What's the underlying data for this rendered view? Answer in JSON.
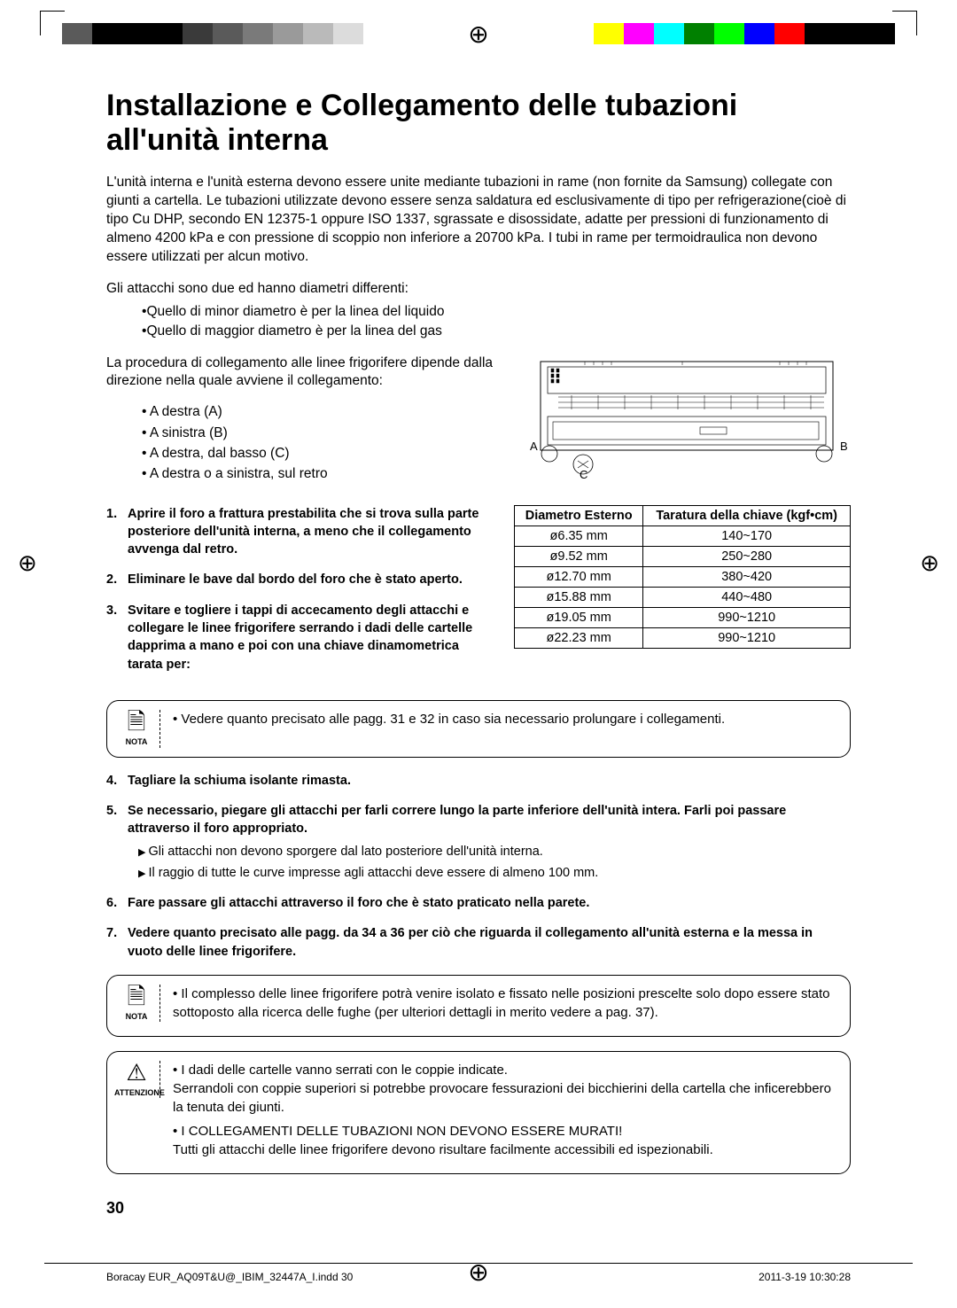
{
  "print": {
    "left_colors": [
      "#5a5a5a",
      "#000000",
      "#000000",
      "#000000",
      "#3a3a3a",
      "#5a5a5a",
      "#7a7a7a",
      "#9a9a9a",
      "#bababa",
      "#dcdcdc"
    ],
    "right_colors": [
      "#ffff00",
      "#ff00ff",
      "#00ffff",
      "#008000",
      "#00ff00",
      "#0000ff",
      "#ff0000",
      "#000000",
      "#000000",
      "#000000"
    ]
  },
  "title": "Installazione e Collegamento delle tubazioni all'unità interna",
  "intro": "L'unità interna e l'unità esterna devono essere unite mediante tubazioni in rame (non fornite da Samsung) collegate con giunti a cartella. Le tubazioni utilizzate devono essere senza saldatura ed esclusivamente di tipo per refrigerazione(cioè di tipo Cu DHP, secondo EN 12375-1 oppure ISO 1337, sgrassate e disossidate, adatte per pressioni di funzionamento di almeno 4200 kPa e con pressione di scoppio non inferiore a 20700 kPa. I tubi in rame per termoidraulica non devono essere utilizzati per alcun motivo.",
  "attach_line": "Gli attacchi sono due ed hanno diametri differenti:",
  "attach_list": [
    "Quello di minor diametro è per la linea del liquido",
    "Quello di maggior diametro è per la linea del gas"
  ],
  "proc_line": "La procedura di collegamento alle linee frigorifere dipende dalla direzione nella quale avviene il collegamento:",
  "directions": [
    "A destra (A)",
    "A sinistra (B)",
    "A destra, dal basso (C)",
    "A destra o a sinistra, sul retro"
  ],
  "steps": {
    "s1": "Aprire il foro a frattura prestabilita che si trova sulla parte posteriore dell'unità interna, a meno che il collegamento avvenga dal retro.",
    "s2": "Eliminare le bave dal bordo del foro che è stato aperto.",
    "s3": "Svitare e togliere i tappi di accecamento degli attacchi e collegare le linee frigorifere serrando i dadi delle cartelle dapprima a mano e poi con una chiave dinamometrica tarata per:",
    "s4": "Tagliare la schiuma isolante rimasta.",
    "s5": "Se necessario, piegare gli attacchi per farli correre lungo la parte inferiore dell'unità intera. Farli poi passare attraverso il foro appropriato.",
    "s5_sub": [
      "Gli attacchi non devono sporgere dal lato posteriore dell'unità interna.",
      "Il raggio di tutte le curve impresse agli attacchi deve essere di almeno 100 mm."
    ],
    "s6": "Fare passare gli attacchi attraverso il foro che è stato  praticato nella parete.",
    "s7": "Vedere quanto precisato alle pagg.  da 34 a 36 per ciò che riguarda il collegamento all'unità esterna e la messa in vuoto delle linee frigorifere."
  },
  "table": {
    "h1": "Diametro Esterno",
    "h2": "Taratura della chiave (kgf•cm)",
    "rows": [
      [
        "ø6.35 mm",
        "140~170"
      ],
      [
        "ø9.52 mm",
        "250~280"
      ],
      [
        "ø12.70 mm",
        "380~420"
      ],
      [
        "ø15.88 mm",
        "440~480"
      ],
      [
        "ø19.05 mm",
        "990~1210"
      ],
      [
        "ø22.23 mm",
        "990~1210"
      ]
    ]
  },
  "nota1": "Vedere quanto precisato alle pagg. 31 e 32  in caso sia necessario prolungare i collegamenti.",
  "nota2": "Il complesso delle linee frigorifere potrà venire isolato e fissato nelle posizioni prescelte solo dopo essere stato sottoposto alla ricerca delle fughe (per ulteriori dettagli in merito vedere a pag. 37).",
  "att1": "I dadi delle cartelle vanno serrati con  le coppie indicate.",
  "att1b": "Serrandoli con coppie superiori si potrebbe provocare fessurazioni dei bicchierini della cartella che inficerebbero la tenuta dei giunti.",
  "att2": "I COLLEGAMENTI DELLE TUBAZIONI NON DEVONO ESSERE MURATI!",
  "att2b": "Tutti gli attacchi delle linee frigorifere devono risultare facilmente accessibili ed ispezionabili.",
  "nota_label": "NOTA",
  "attenzione_label": "ATTENZIONE",
  "diagram": {
    "A": "A",
    "B": "B",
    "C": "C"
  },
  "page_number": "30",
  "footer_left": "Boracay EUR_AQ09T&U@_IBIM_32447A_I.indd   30",
  "footer_right": "2011-3-19   10:30:28"
}
